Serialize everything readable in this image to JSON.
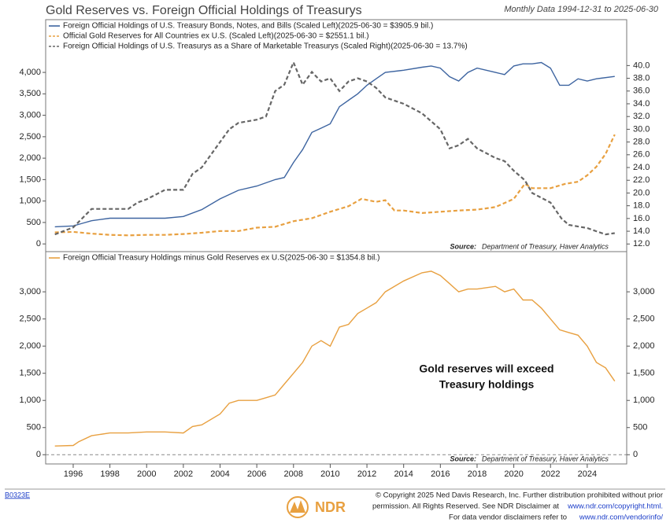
{
  "title": "Gold Reserves vs. Foreign Official Holdings of Treasurys",
  "subtitle": "Monthly Data 1994-12-31 to 2025-06-30",
  "chart_data": [
    {
      "type": "line",
      "xlim": [
        1994.5,
        2026.15
      ],
      "ylim": [
        -180,
        5230
      ],
      "yticks": [
        0,
        500,
        {
          "value": 1000,
          "label": "1,000"
        },
        {
          "value": 1500,
          "label": "1,500"
        },
        {
          "value": 2000,
          "label": "2,000"
        },
        {
          "value": 2500,
          "label": "2,500"
        },
        {
          "value": 3000,
          "label": "3,000"
        },
        {
          "value": 3500,
          "label": "3,500"
        },
        {
          "value": 4000,
          "label": "4,000"
        }
      ],
      "y2lim": [
        10.8,
        47.2
      ],
      "y2ticks": [
        {
          "value": 12,
          "label": "12.0"
        },
        {
          "value": 14,
          "label": "14.0"
        },
        {
          "value": 16,
          "label": "16.0"
        },
        {
          "value": 18,
          "label": "18.0"
        },
        {
          "value": 20,
          "label": "20.0"
        },
        {
          "value": 22,
          "label": "22.0"
        },
        {
          "value": 24,
          "label": "24.0"
        },
        {
          "value": 26,
          "label": "26.0"
        },
        {
          "value": 28,
          "label": "28.0"
        },
        {
          "value": 30,
          "label": "30.0"
        },
        {
          "value": 32,
          "label": "32.0"
        },
        {
          "value": 34,
          "label": "34.0"
        },
        {
          "value": 36,
          "label": "36.0"
        },
        {
          "value": 38,
          "label": "38.0"
        },
        {
          "value": 40,
          "label": "40.0"
        }
      ],
      "source_label": "Source:",
      "source": "Department of Treasury, Haver Analytics",
      "series": [
        {
          "name": "Foreign Official Holdings of U.S. Treasury Bonds, Notes, and Bills (Scaled Left)(2025-06-30 = $3905.9 bil.)",
          "color": "#3d64a0",
          "dash": false,
          "x": [
            1995,
            1996,
            1996.5,
            1997,
            1998,
            1999,
            2000,
            2001,
            2002,
            2003,
            2004,
            2005,
            2006,
            2007,
            2007.5,
            2008,
            2008.5,
            2009,
            2009.5,
            2010,
            2010.5,
            2011,
            2011.5,
            2012,
            2012.5,
            2013,
            2014,
            2015,
            2015.5,
            2016,
            2016.5,
            2017,
            2017.5,
            2018,
            2019,
            2019.5,
            2020,
            2020.5,
            2021,
            2021.5,
            2022,
            2022.5,
            2023,
            2023.5,
            2024,
            2024.5,
            2025.5
          ],
          "values": [
            400,
            420,
            480,
            540,
            600,
            600,
            600,
            600,
            640,
            800,
            1050,
            1250,
            1350,
            1500,
            1550,
            1900,
            2200,
            2600,
            2700,
            2800,
            3200,
            3350,
            3500,
            3700,
            3850,
            4000,
            4050,
            4120,
            4150,
            4100,
            3900,
            3800,
            4000,
            4100,
            4000,
            3950,
            4150,
            4200,
            4200,
            4230,
            4100,
            3700,
            3700,
            3850,
            3800,
            3850,
            3906
          ]
        },
        {
          "name": "Official Gold Reserves for All Countries ex U.S. (Scaled Left)(2025-06-30 = $2551.1 bil.)",
          "color": "#e8a040",
          "dash": true,
          "x": [
            1995,
            1996,
            1997,
            1998,
            1999,
            2000,
            2001,
            2002,
            2003,
            2004,
            2005,
            2006,
            2007,
            2008,
            2009,
            2010,
            2011,
            2011.7,
            2012.5,
            2013,
            2013.5,
            2014,
            2015,
            2016,
            2017,
            2018,
            2019,
            2020,
            2020.6,
            2021,
            2022,
            2022.8,
            2023.5,
            2024,
            2024.5,
            2025,
            2025.5
          ],
          "values": [
            270,
            280,
            240,
            210,
            200,
            210,
            210,
            230,
            260,
            300,
            300,
            380,
            400,
            530,
            600,
            750,
            880,
            1050,
            980,
            1020,
            780,
            780,
            720,
            750,
            780,
            800,
            860,
            1050,
            1400,
            1300,
            1300,
            1400,
            1450,
            1600,
            1800,
            2100,
            2551
          ]
        },
        {
          "name": "Foreign Official Holdings of U.S. Treasurys as a Share of Marketable Treasurys (Scaled Right)(2025-06-30 = 13.7%)",
          "color": "#666666",
          "dash": true,
          "axis": "y2",
          "x": [
            1995,
            1996,
            1997,
            1998,
            1999,
            1999.5,
            2000,
            2001,
            2002,
            2002.5,
            2003,
            2004,
            2004.5,
            2005,
            2006,
            2006.5,
            2007,
            2007.5,
            2008,
            2008.5,
            2009,
            2009.5,
            2010,
            2010.5,
            2011,
            2011.5,
            2012,
            2012.5,
            2013,
            2014,
            2015,
            2016,
            2016.5,
            2017,
            2017.5,
            2018,
            2019,
            2019.5,
            2020,
            2020.6,
            2021,
            2022,
            2022.6,
            2023,
            2024,
            2024.5,
            2025,
            2025.5
          ],
          "values": [
            13.5,
            14.6,
            17.5,
            17.5,
            17.5,
            18.5,
            19,
            20.5,
            20.5,
            23,
            24,
            28,
            30,
            31,
            31.5,
            32,
            36,
            37,
            40.5,
            37,
            39,
            37.5,
            38,
            36,
            37.5,
            38,
            37.5,
            36.5,
            35,
            34,
            32.5,
            30,
            27,
            27.5,
            28.5,
            27,
            25.5,
            25,
            23.5,
            22,
            20,
            18.5,
            16,
            15,
            14.5,
            14,
            13.5,
            13.7
          ]
        }
      ]
    },
    {
      "type": "line",
      "xlim": [
        1994.5,
        2026.15
      ],
      "xticks": [
        1996,
        1998,
        2000,
        2002,
        2004,
        2006,
        2008,
        2010,
        2012,
        2014,
        2016,
        2018,
        2020,
        2022,
        2024
      ],
      "ylim": [
        -170,
        3740
      ],
      "yticks": [
        0,
        500,
        {
          "value": 1000,
          "label": "1,000"
        },
        {
          "value": 1500,
          "label": "1,500"
        },
        {
          "value": 2000,
          "label": "2,000"
        },
        {
          "value": 2500,
          "label": "2,500"
        },
        {
          "value": 3000,
          "label": "3,000"
        }
      ],
      "y2lim": [
        -170,
        3740
      ],
      "y2ticks": [
        0,
        500,
        {
          "value": 1000,
          "label": "1,000"
        },
        {
          "value": 1500,
          "label": "1,500"
        },
        {
          "value": 2000,
          "label": "2,000"
        },
        {
          "value": 2500,
          "label": "2,500"
        },
        {
          "value": 3000,
          "label": "3,000"
        }
      ],
      "hline": 0,
      "annotation": [
        "Gold reserves will exceed",
        "Treasury holdings"
      ],
      "source_label": "Source:",
      "source": "Department of Treasury, Haver Analytics",
      "series": [
        {
          "name": "Foreign Official Treasury Holdings minus Gold Reserves ex U.S(2025-06-30 = $1354.8 bil.)",
          "color": "#e8a040",
          "dash": false,
          "x": [
            1995,
            1996,
            1996.3,
            1997,
            1998,
            1999,
            2000,
            2001,
            2002,
            2002.5,
            2003,
            2004,
            2004.5,
            2005,
            2006,
            2006.5,
            2007,
            2007.5,
            2008,
            2008.5,
            2009,
            2009.5,
            2010,
            2010.5,
            2011,
            2011.5,
            2012,
            2012.5,
            2013,
            2014,
            2015,
            2015.5,
            2016,
            2016.5,
            2017,
            2017.5,
            2018,
            2019,
            2019.5,
            2020,
            2020.5,
            2021,
            2021.5,
            2022,
            2022.5,
            2023,
            2023.5,
            2024,
            2024.5,
            2025,
            2025.5
          ],
          "values": [
            160,
            170,
            240,
            350,
            400,
            400,
            420,
            420,
            400,
            520,
            550,
            750,
            950,
            1000,
            1000,
            1050,
            1100,
            1300,
            1500,
            1700,
            2000,
            2100,
            2000,
            2350,
            2400,
            2600,
            2700,
            2800,
            3000,
            3200,
            3350,
            3380,
            3300,
            3150,
            3000,
            3050,
            3050,
            3100,
            3000,
            3050,
            2850,
            2850,
            2700,
            2500,
            2300,
            2250,
            2200,
            2000,
            1700,
            1600,
            1355
          ]
        }
      ]
    }
  ],
  "footer": {
    "code": "B0323E",
    "brand": "NDR",
    "line1": "© Copyright 2025 Ned Davis Research, Inc. Further distribution prohibited without prior",
    "line2": "permission. All Rights Reserved. See NDR Disclaimer at",
    "link2": "www.ndr.com/copyright.html.",
    "line3": "For data vendor disclaimers refer to",
    "link3": "www.ndr.com/vendorinfo/"
  }
}
